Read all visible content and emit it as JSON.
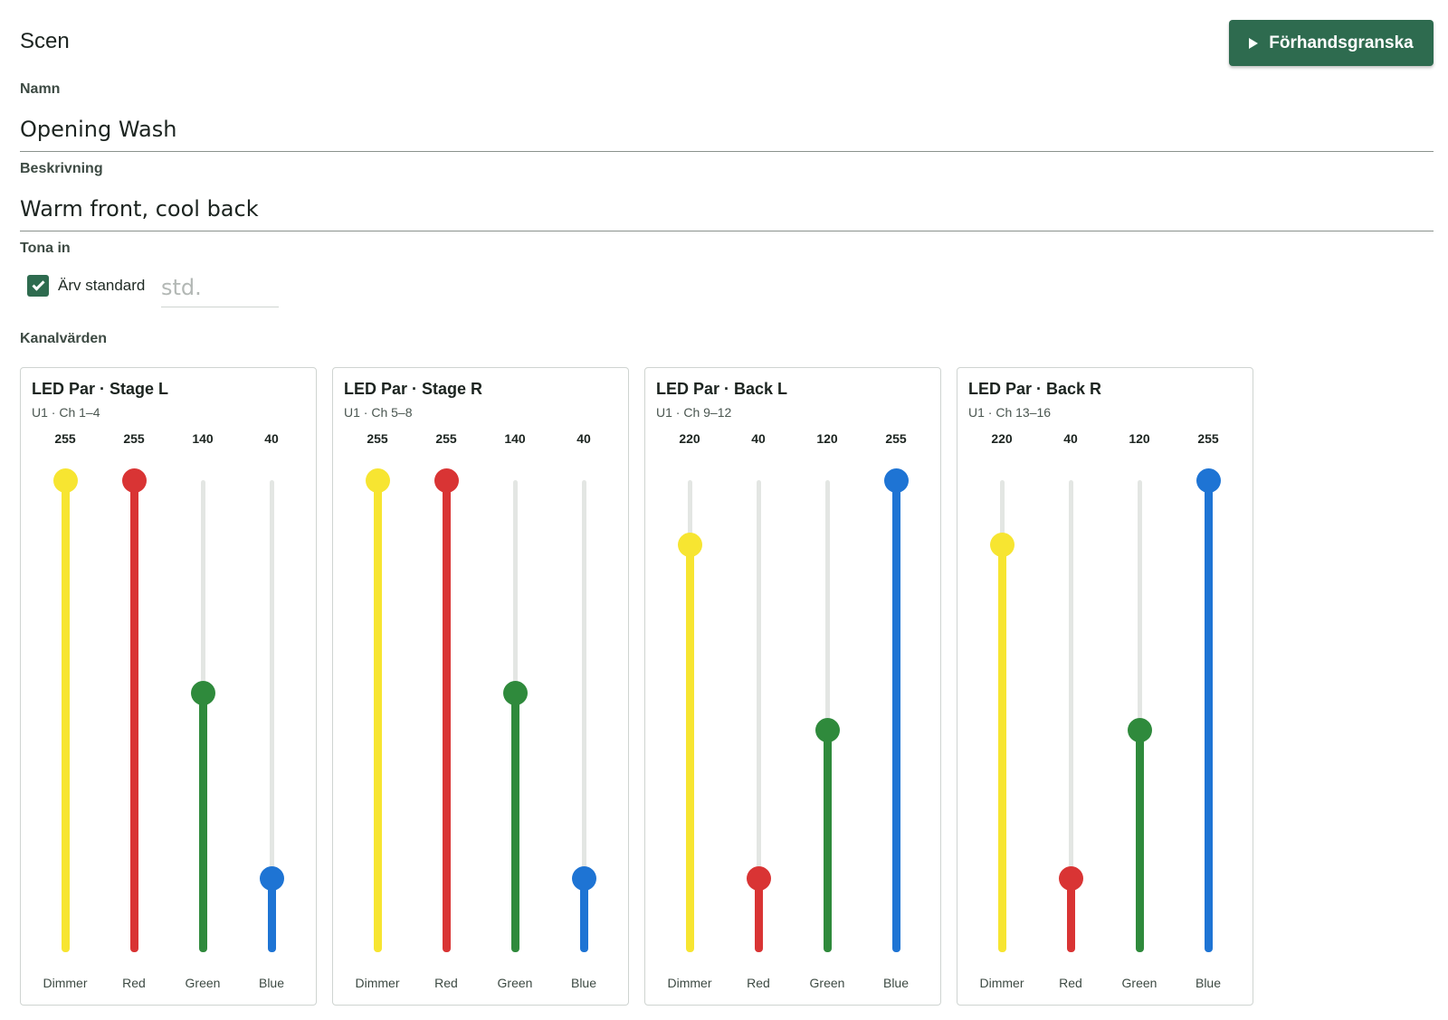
{
  "header": {
    "title": "Scen",
    "preview_label": "Förhandsgranska"
  },
  "form": {
    "name_label": "Namn",
    "name_value": "Opening Wash",
    "description_label": "Beskrivning",
    "description_value": "Warm front, cool back",
    "fade_label": "Tona in",
    "inherit_label": "Ärv standard",
    "inherit_checked": true,
    "fade_placeholder": "std."
  },
  "channels_label": "Kanalvärden",
  "dmx_max": 255,
  "channel_colors": {
    "Dimmer": "#f7e531",
    "Red": "#d93434",
    "Green": "#2f8a3c",
    "Blue": "#1e74d4"
  },
  "fixtures": [
    {
      "name": "LED Par · Stage L",
      "address": "U1 · Ch 1–4",
      "channels": [
        {
          "label": "Dimmer",
          "value": 255
        },
        {
          "label": "Red",
          "value": 255
        },
        {
          "label": "Green",
          "value": 140
        },
        {
          "label": "Blue",
          "value": 40
        }
      ]
    },
    {
      "name": "LED Par · Stage R",
      "address": "U1 · Ch 5–8",
      "channels": [
        {
          "label": "Dimmer",
          "value": 255
        },
        {
          "label": "Red",
          "value": 255
        },
        {
          "label": "Green",
          "value": 140
        },
        {
          "label": "Blue",
          "value": 40
        }
      ]
    },
    {
      "name": "LED Par · Back L",
      "address": "U1 · Ch 9–12",
      "channels": [
        {
          "label": "Dimmer",
          "value": 220
        },
        {
          "label": "Red",
          "value": 40
        },
        {
          "label": "Green",
          "value": 120
        },
        {
          "label": "Blue",
          "value": 255
        }
      ]
    },
    {
      "name": "LED Par · Back R",
      "address": "U1 · Ch 13–16",
      "channels": [
        {
          "label": "Dimmer",
          "value": 220
        },
        {
          "label": "Red",
          "value": 40
        },
        {
          "label": "Green",
          "value": 120
        },
        {
          "label": "Blue",
          "value": 255
        }
      ]
    }
  ]
}
